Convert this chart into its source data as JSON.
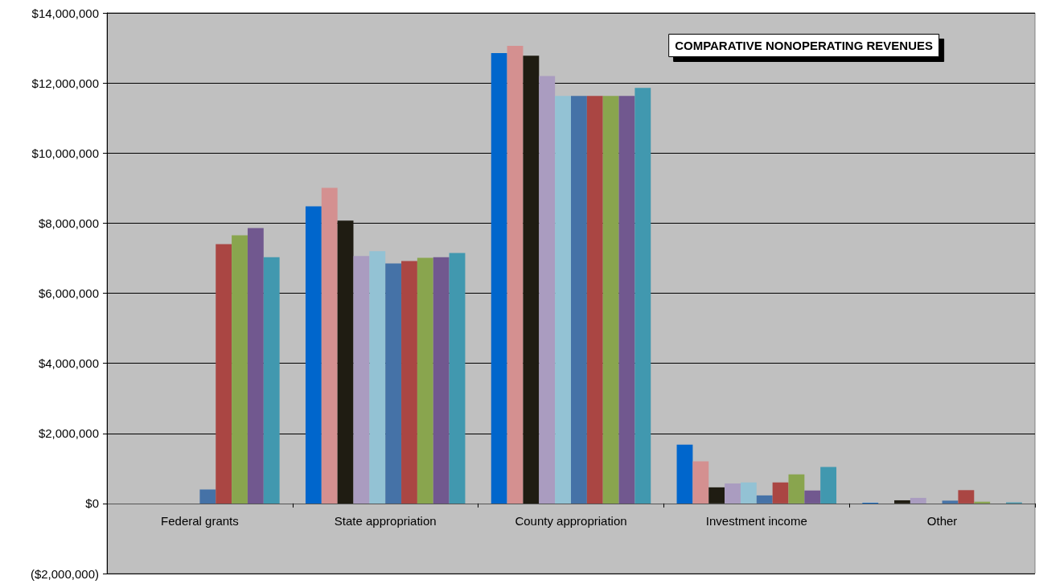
{
  "chart_data": {
    "type": "bar",
    "title": "COMPARATIVE NONOPERATING REVENUES",
    "categories": [
      "Federal grants",
      "State appropriation",
      "County appropriation",
      "Investment income",
      "Other"
    ],
    "series": [
      {
        "color": "#0066cc",
        "values": [
          0,
          8480000,
          12850000,
          1680000,
          20000
        ]
      },
      {
        "color": "#d49090",
        "values": [
          0,
          9010000,
          13060000,
          1200000,
          0
        ]
      },
      {
        "color": "#1f1c12",
        "values": [
          0,
          8070000,
          12780000,
          460000,
          90000
        ]
      },
      {
        "color": "#aa9cc0",
        "values": [
          0,
          7060000,
          12200000,
          570000,
          160000
        ]
      },
      {
        "color": "#93c2d4",
        "values": [
          0,
          7200000,
          11630000,
          600000,
          null
        ]
      },
      {
        "color": "#4572a7",
        "values": [
          400000,
          6850000,
          11630000,
          230000,
          80000
        ]
      },
      {
        "color": "#aa4643",
        "values": [
          7400000,
          6920000,
          11630000,
          600000,
          380000
        ]
      },
      {
        "color": "#89a54e",
        "values": [
          7650000,
          7010000,
          11630000,
          830000,
          50000
        ]
      },
      {
        "color": "#71588f",
        "values": [
          7860000,
          7030000,
          11630000,
          370000,
          0
        ]
      },
      {
        "color": "#4198af",
        "values": [
          7030000,
          7150000,
          11860000,
          1040000,
          30000
        ]
      }
    ],
    "ylim": [
      -2000000,
      14000000
    ],
    "yticks": [
      {
        "value": -2000000,
        "label": "($2,000,000)"
      },
      {
        "value": 0,
        "label": "$0"
      },
      {
        "value": 2000000,
        "label": "$2,000,000"
      },
      {
        "value": 4000000,
        "label": "$4,000,000"
      },
      {
        "value": 6000000,
        "label": "$6,000,000"
      },
      {
        "value": 8000000,
        "label": "$8,000,000"
      },
      {
        "value": 10000000,
        "label": "$10,000,000"
      },
      {
        "value": 12000000,
        "label": "$12,000,000"
      },
      {
        "value": 14000000,
        "label": "$14,000,000"
      }
    ],
    "grid": "y"
  }
}
